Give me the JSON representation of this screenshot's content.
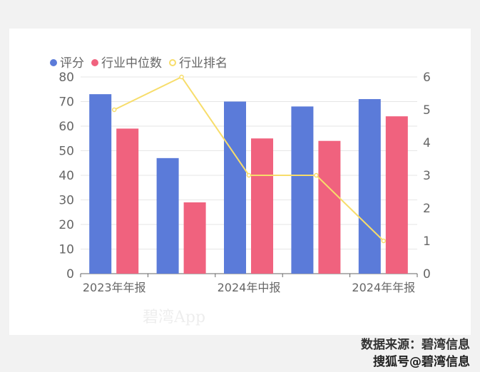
{
  "chart_data": {
    "type": "bar+line",
    "categories": [
      "2023年年报",
      "",
      "2024年中报",
      "",
      "2024年年报"
    ],
    "series": [
      {
        "name": "评分",
        "type": "bar",
        "axis": "left",
        "color": "#5b7bd9",
        "values": [
          73,
          47,
          70,
          68,
          71
        ]
      },
      {
        "name": "行业中位数",
        "type": "bar",
        "axis": "left",
        "color": "#f0627e",
        "values": [
          59,
          29,
          55,
          54,
          64
        ]
      },
      {
        "name": "行业排名",
        "type": "line",
        "axis": "right",
        "color": "#f7dd6b",
        "values": [
          5,
          6,
          3,
          3,
          1
        ]
      }
    ],
    "y_left": {
      "range": [
        0,
        80
      ],
      "ticks": [
        "0",
        "10",
        "20",
        "30",
        "40",
        "50",
        "60",
        "70",
        "80"
      ]
    },
    "y_right": {
      "range": [
        0,
        6
      ],
      "ticks": [
        "0",
        "1",
        "2",
        "3",
        "4",
        "5",
        "6"
      ]
    },
    "grid": true,
    "legend_position": "top-left"
  },
  "footer": {
    "source": "数据来源：碧湾信息",
    "overlay": "搜狐号@碧湾信息"
  },
  "watermark": "碧湾App"
}
